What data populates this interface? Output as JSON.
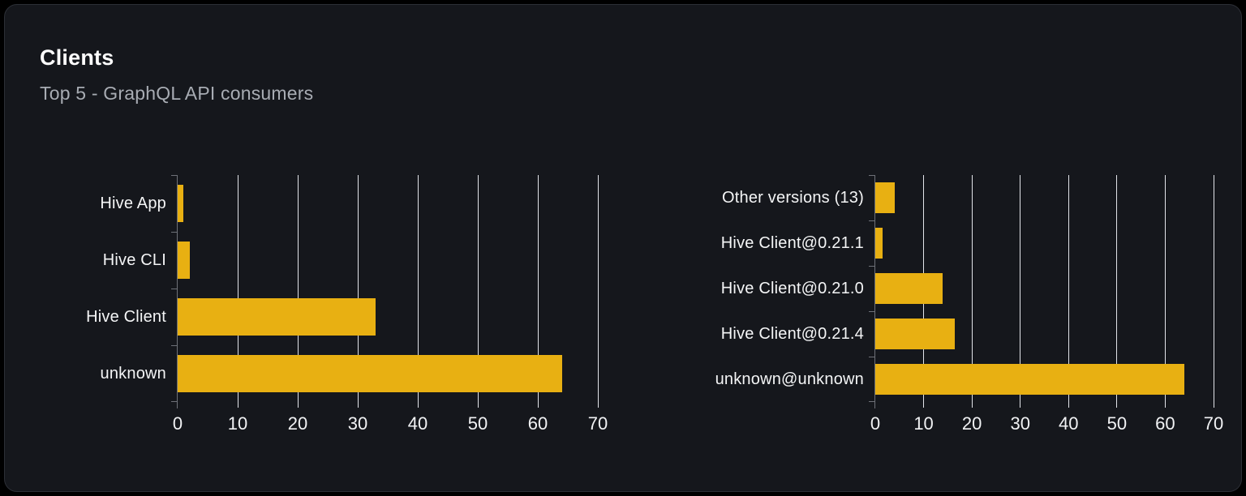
{
  "card": {
    "title": "Clients",
    "subtitle": "Top 5 - GraphQL API consumers"
  },
  "colors": {
    "page_bg": "#000000",
    "card_bg": "#15171c",
    "card_border": "#2c2f36",
    "title": "#ffffff",
    "subtitle": "#a8acb3",
    "bar": "#e8b012",
    "gridline": "#e2e4e9",
    "axis": "#6e7178",
    "tick_label": "#f1f2f4",
    "category_label": "#f4f5f6"
  },
  "chart_data": [
    {
      "type": "bar",
      "orientation": "horizontal",
      "title": "",
      "xlabel": "",
      "ylabel": "",
      "categories": [
        "Hive App",
        "Hive CLI",
        "Hive Client",
        "unknown"
      ],
      "values": [
        1,
        2,
        33,
        64
      ],
      "xlim": [
        0,
        70
      ],
      "xticks": [
        0,
        10,
        20,
        30,
        40,
        50,
        60,
        70
      ],
      "grid": true,
      "legend": false
    },
    {
      "type": "bar",
      "orientation": "horizontal",
      "title": "",
      "xlabel": "",
      "ylabel": "",
      "categories": [
        "Other versions (13)",
        "Hive Client@0.21.1",
        "Hive Client@0.21.0",
        "Hive Client@0.21.4",
        "unknown@unknown"
      ],
      "values": [
        4,
        1.5,
        14,
        16.5,
        64
      ],
      "xlim": [
        0,
        70
      ],
      "xticks": [
        0,
        10,
        20,
        30,
        40,
        50,
        60,
        70
      ],
      "grid": true,
      "legend": false
    }
  ]
}
